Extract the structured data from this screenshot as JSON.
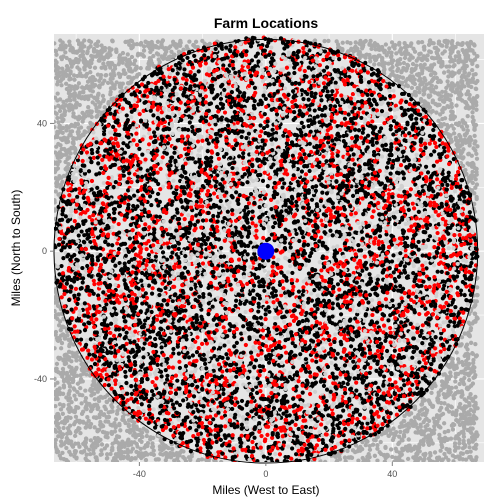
{
  "chart_data": {
    "type": "scatter",
    "title": "Farm Locations",
    "xlabel": "Miles (West to East)",
    "ylabel": "Miles (North to South)",
    "xlim": [
      -67,
      69
    ],
    "ylim": [
      -66,
      68
    ],
    "x_ticks": [
      -40,
      0,
      40
    ],
    "y_ticks": [
      -40,
      0,
      40
    ],
    "x_tick_labels": [
      "-40",
      "0",
      "40"
    ],
    "y_tick_labels": [
      "-40",
      "0",
      "40"
    ],
    "grid": true,
    "panel_background": "#e5e5e5",
    "grid_color": "#ffffff",
    "boundary_circle": {
      "center": [
        0,
        0
      ],
      "radius": 67,
      "color": "#000000"
    },
    "scatter_region": {
      "x_range": [
        -67,
        67
      ],
      "y_range": [
        -66,
        66
      ]
    },
    "series": [
      {
        "color": "#aaaaaa",
        "region": "square_outside_circle",
        "count": 2600
      },
      {
        "color": "#d0d0d0",
        "region": "inside_circle",
        "count": 2200
      },
      {
        "color": "#000000",
        "region": "inside_circle",
        "count": 5200
      },
      {
        "color": "#ff0000",
        "region": "inside_circle",
        "count": 2600
      }
    ],
    "center_point": {
      "x": 0,
      "y": 0,
      "color": "#0000ff"
    }
  }
}
